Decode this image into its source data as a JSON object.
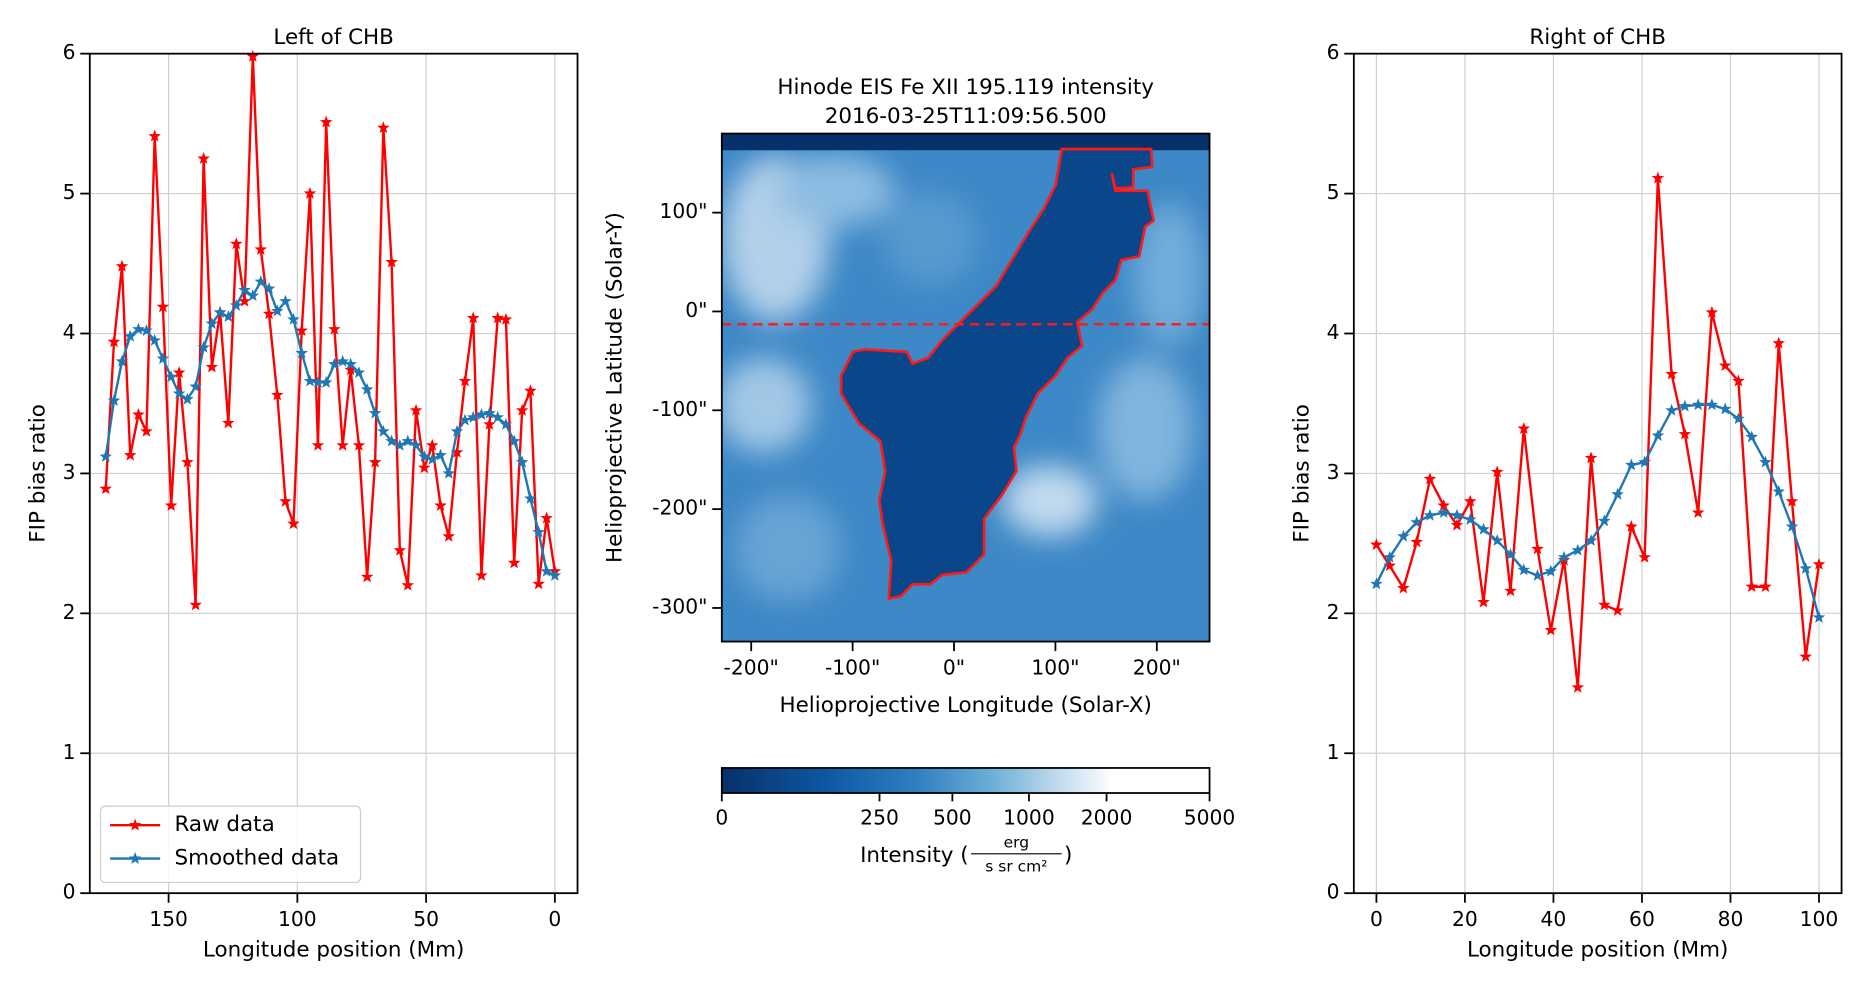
{
  "chart_data": [
    {
      "type": "line",
      "title": "Left of CHB",
      "xlabel": "Longitude position (Mm)",
      "ylabel": "FIP bias ratio",
      "xlim": [
        180.6,
        -8.8
      ],
      "ylim": [
        0,
        6
      ],
      "xticks": [
        150,
        100,
        50,
        0
      ],
      "yticks": [
        0,
        1,
        2,
        3,
        4,
        5,
        6
      ],
      "grid": true,
      "legend": "lower left",
      "x": [
        174.4,
        171.2,
        168.1,
        164.9,
        161.7,
        158.6,
        155.4,
        152.2,
        149.0,
        145.9,
        142.7,
        139.5,
        136.4,
        133.2,
        130.0,
        126.8,
        123.7,
        120.5,
        117.3,
        114.2,
        111.0,
        107.8,
        104.6,
        101.5,
        98.3,
        95.1,
        92.0,
        88.8,
        85.6,
        82.4,
        79.3,
        76.1,
        72.9,
        69.8,
        66.6,
        63.4,
        60.2,
        57.1,
        53.9,
        50.7,
        47.6,
        44.4,
        41.2,
        38.0,
        34.9,
        31.7,
        28.5,
        25.4,
        22.2,
        19.0,
        15.8,
        12.7,
        9.5,
        6.3,
        3.2,
        0.0
      ],
      "series": [
        {
          "name": "Raw data",
          "color": "#ff0000",
          "marker": "star",
          "values": [
            2.89,
            3.94,
            4.48,
            3.13,
            3.42,
            3.3,
            5.41,
            4.19,
            2.77,
            3.72,
            3.08,
            2.06,
            5.25,
            3.76,
            4.15,
            3.36,
            4.64,
            4.23,
            5.98,
            4.6,
            4.14,
            3.56,
            2.8,
            2.64,
            4.02,
            5.0,
            3.2,
            5.51,
            4.03,
            3.2,
            3.74,
            3.2,
            2.26,
            3.08,
            5.47,
            4.51,
            2.45,
            2.2,
            3.45,
            3.04,
            3.2,
            2.77,
            2.55,
            3.15,
            3.66,
            4.11,
            2.27,
            3.35,
            4.11,
            4.1,
            2.36,
            3.45,
            3.59,
            2.21,
            2.68,
            2.3
          ]
        },
        {
          "name": "Smoothed data",
          "color": "#1f77b4",
          "marker": "star",
          "values": [
            3.12,
            3.52,
            3.8,
            3.98,
            4.03,
            4.02,
            3.95,
            3.82,
            3.69,
            3.57,
            3.53,
            3.62,
            3.9,
            4.07,
            4.15,
            4.12,
            4.2,
            4.31,
            4.27,
            4.37,
            4.32,
            4.16,
            4.23,
            4.1,
            3.86,
            3.66,
            3.65,
            3.65,
            3.78,
            3.8,
            3.78,
            3.72,
            3.6,
            3.43,
            3.3,
            3.23,
            3.2,
            3.23,
            3.2,
            3.12,
            3.1,
            3.13,
            3.0,
            3.3,
            3.38,
            3.4,
            3.42,
            3.43,
            3.4,
            3.35,
            3.23,
            3.08,
            2.82,
            2.58,
            2.3,
            2.27
          ]
        }
      ]
    },
    {
      "type": "image",
      "title": "Hinode EIS Fe XII 195.119 intensity",
      "subtitle": "2016-03-25T11:09:56.500",
      "xlabel": "Helioprojective Longitude (Solar-X)",
      "ylabel": "Helioprojective Latitude (Solar-Y)",
      "xlim": [
        -229,
        252
      ],
      "ylim": [
        -334,
        180
      ],
      "xticks": [
        {
          "value": -200,
          "label": "-200\""
        },
        {
          "value": -100,
          "label": "-100\""
        },
        {
          "value": 0,
          "label": "0\""
        },
        {
          "value": 100,
          "label": "100\""
        },
        {
          "value": 200,
          "label": "200\""
        }
      ],
      "yticks": [
        {
          "value": -300,
          "label": "-300\""
        },
        {
          "value": -200,
          "label": "-200\""
        },
        {
          "value": -100,
          "label": "-100\""
        },
        {
          "value": 0,
          "label": "0\""
        },
        {
          "value": 100,
          "label": "100\""
        }
      ],
      "colorbar": {
        "label_open": "Intensity (",
        "unit_num": "erg",
        "unit_den": "s sr cm²",
        "label_close": ")",
        "lim": [
          0,
          5000
        ],
        "scale": "asinh",
        "ticks": [
          0,
          250,
          500,
          1000,
          2000,
          5000
        ]
      }
    },
    {
      "type": "line",
      "title": "Right of CHB",
      "xlabel": "Longitude position (Mm)",
      "ylabel": "FIP bias ratio",
      "xlim": [
        -5.1,
        105.1
      ],
      "ylim": [
        0,
        6
      ],
      "xticks": [
        0,
        20,
        40,
        60,
        80,
        100
      ],
      "yticks": [
        0,
        1,
        2,
        3,
        4,
        5,
        6
      ],
      "grid": true,
      "x": [
        0,
        3,
        6.1,
        9.1,
        12.1,
        15.2,
        18.2,
        21.2,
        24.2,
        27.3,
        30.3,
        33.3,
        36.4,
        39.4,
        42.4,
        45.5,
        48.5,
        51.5,
        54.5,
        57.6,
        60.6,
        63.6,
        66.7,
        69.7,
        72.7,
        75.8,
        78.8,
        81.8,
        84.8,
        87.9,
        90.9,
        93.9,
        97,
        100
      ],
      "series": [
        {
          "name": "Raw data",
          "color": "#ff0000",
          "marker": "star",
          "values": [
            2.49,
            2.34,
            2.18,
            2.51,
            2.96,
            2.77,
            2.63,
            2.8,
            2.08,
            3.01,
            2.16,
            3.32,
            2.46,
            1.88,
            2.38,
            1.47,
            3.11,
            2.06,
            2.02,
            2.62,
            2.4,
            5.11,
            3.71,
            3.28,
            2.72,
            4.15,
            3.77,
            3.66,
            2.19,
            2.19,
            3.93,
            2.8,
            1.69,
            2.35
          ]
        },
        {
          "name": "Smoothed data",
          "color": "#1f77b4",
          "marker": "star",
          "values": [
            2.21,
            2.4,
            2.55,
            2.65,
            2.7,
            2.72,
            2.7,
            2.67,
            2.6,
            2.52,
            2.42,
            2.31,
            2.27,
            2.3,
            2.4,
            2.45,
            2.52,
            2.66,
            2.85,
            3.06,
            3.08,
            3.27,
            3.45,
            3.48,
            3.49,
            3.49,
            3.46,
            3.39,
            3.26,
            3.08,
            2.87,
            2.62,
            2.32,
            1.97
          ]
        }
      ]
    }
  ]
}
